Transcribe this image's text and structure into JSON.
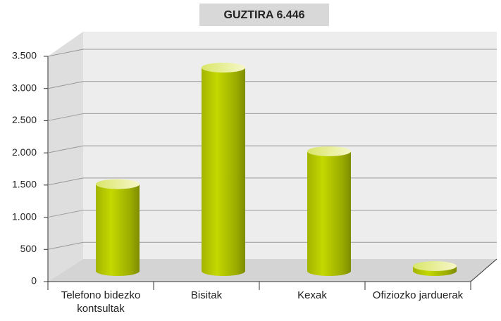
{
  "chart_data": {
    "type": "bar",
    "title": "GUZTIRA  6.446",
    "categories": [
      "Telefono bidezko kontsultak",
      "Bisitak",
      "Kexak",
      "Ofiziozko jarduerak"
    ],
    "values": [
      1350,
      3160,
      1860,
      76
    ],
    "color": "#b3c600",
    "ylim": [
      0,
      3500
    ],
    "yticks": [
      0,
      500,
      {
        "value": 1000,
        "label": "1.000"
      },
      {
        "value": 1500,
        "label": "1.500"
      },
      {
        "value": 2000,
        "label": "2.000"
      },
      {
        "value": 2500,
        "label": "2.500"
      },
      {
        "value": 3000,
        "label": "3.000"
      },
      {
        "value": 3500,
        "label": "3.500"
      }
    ],
    "grid": true
  }
}
